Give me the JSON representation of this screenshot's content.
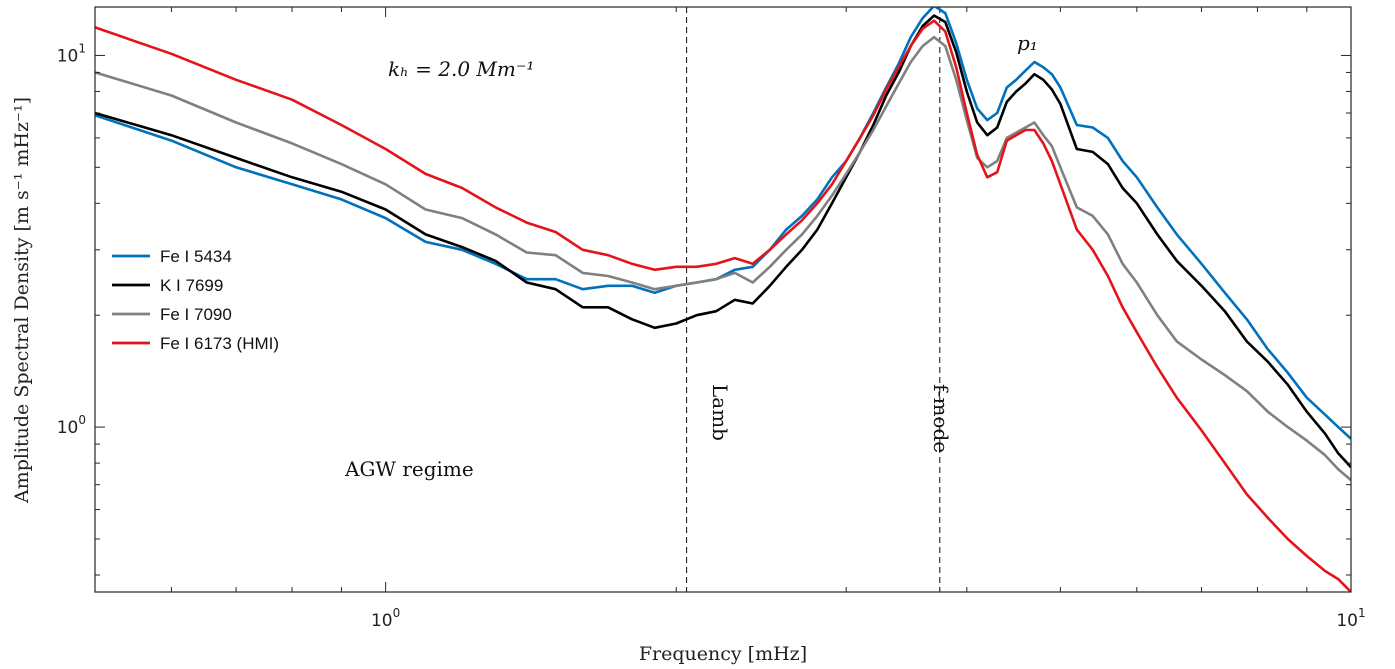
{
  "chart_data": {
    "type": "line",
    "xscale": "log",
    "yscale": "log",
    "xlim": [
      0.5,
      10
    ],
    "ylim": [
      0.36,
      13.5
    ],
    "xlabel": "Frequency [mHz]",
    "ylabel": "Amplitude Spectral Density [m s⁻¹ mHz⁻¹]",
    "xticks": [
      {
        "value": 1,
        "base": "10",
        "exp": "0"
      },
      {
        "value": 10,
        "base": "10",
        "exp": "1"
      }
    ],
    "yticks": [
      {
        "value": 1,
        "base": "10",
        "exp": "0"
      },
      {
        "value": 10,
        "base": "10",
        "exp": "1"
      }
    ],
    "grid": false,
    "legend_position": "left",
    "annotations": {
      "kh": "kₕ = 2.0 Mm⁻¹",
      "agw": "AGW regime",
      "lamb": "Lamb",
      "fmode": "f-mode",
      "p1": "p₁"
    },
    "vlines": [
      {
        "name": "lamb",
        "x": 2.05
      },
      {
        "name": "fmode",
        "x": 3.75
      }
    ],
    "series": [
      {
        "name": "Fe I 5434",
        "color": "#0072BD",
        "points": [
          [
            0.5,
            6.9
          ],
          [
            0.6,
            5.9
          ],
          [
            0.7,
            5.0
          ],
          [
            0.8,
            4.5
          ],
          [
            0.9,
            4.1
          ],
          [
            1.0,
            3.65
          ],
          [
            1.1,
            3.15
          ],
          [
            1.2,
            3.0
          ],
          [
            1.3,
            2.75
          ],
          [
            1.4,
            2.5
          ],
          [
            1.5,
            2.5
          ],
          [
            1.6,
            2.35
          ],
          [
            1.7,
            2.4
          ],
          [
            1.8,
            2.4
          ],
          [
            1.9,
            2.3
          ],
          [
            2.0,
            2.4
          ],
          [
            2.1,
            2.45
          ],
          [
            2.2,
            2.5
          ],
          [
            2.3,
            2.65
          ],
          [
            2.4,
            2.7
          ],
          [
            2.5,
            3.0
          ],
          [
            2.6,
            3.4
          ],
          [
            2.7,
            3.7
          ],
          [
            2.8,
            4.1
          ],
          [
            2.9,
            4.7
          ],
          [
            3.0,
            5.2
          ],
          [
            3.1,
            6.0
          ],
          [
            3.2,
            7.0
          ],
          [
            3.3,
            8.2
          ],
          [
            3.4,
            9.5
          ],
          [
            3.5,
            11.2
          ],
          [
            3.6,
            12.6
          ],
          [
            3.7,
            13.6
          ],
          [
            3.8,
            13.0
          ],
          [
            3.9,
            10.8
          ],
          [
            4.0,
            8.6
          ],
          [
            4.1,
            7.2
          ],
          [
            4.2,
            6.7
          ],
          [
            4.3,
            7.0
          ],
          [
            4.4,
            8.2
          ],
          [
            4.5,
            8.6
          ],
          [
            4.6,
            9.1
          ],
          [
            4.7,
            9.6
          ],
          [
            4.8,
            9.3
          ],
          [
            4.9,
            8.9
          ],
          [
            5.0,
            8.2
          ],
          [
            5.2,
            6.5
          ],
          [
            5.4,
            6.4
          ],
          [
            5.6,
            6.0
          ],
          [
            5.8,
            5.2
          ],
          [
            6.0,
            4.7
          ],
          [
            6.3,
            3.9
          ],
          [
            6.6,
            3.3
          ],
          [
            7.0,
            2.75
          ],
          [
            7.4,
            2.3
          ],
          [
            7.8,
            1.95
          ],
          [
            8.2,
            1.62
          ],
          [
            8.6,
            1.4
          ],
          [
            9.0,
            1.2
          ],
          [
            9.4,
            1.08
          ],
          [
            9.7,
            1.0
          ],
          [
            10.0,
            0.93
          ]
        ]
      },
      {
        "name": "K I 7699",
        "color": "#000000",
        "points": [
          [
            0.5,
            7.0
          ],
          [
            0.6,
            6.1
          ],
          [
            0.7,
            5.3
          ],
          [
            0.8,
            4.7
          ],
          [
            0.9,
            4.3
          ],
          [
            1.0,
            3.85
          ],
          [
            1.1,
            3.3
          ],
          [
            1.2,
            3.05
          ],
          [
            1.3,
            2.8
          ],
          [
            1.4,
            2.45
          ],
          [
            1.5,
            2.35
          ],
          [
            1.6,
            2.1
          ],
          [
            1.7,
            2.1
          ],
          [
            1.8,
            1.95
          ],
          [
            1.9,
            1.85
          ],
          [
            2.0,
            1.9
          ],
          [
            2.1,
            2.0
          ],
          [
            2.2,
            2.05
          ],
          [
            2.3,
            2.2
          ],
          [
            2.4,
            2.15
          ],
          [
            2.5,
            2.4
          ],
          [
            2.6,
            2.7
          ],
          [
            2.7,
            3.0
          ],
          [
            2.8,
            3.4
          ],
          [
            2.9,
            4.0
          ],
          [
            3.0,
            4.7
          ],
          [
            3.1,
            5.5
          ],
          [
            3.2,
            6.5
          ],
          [
            3.3,
            7.8
          ],
          [
            3.4,
            9.0
          ],
          [
            3.5,
            10.6
          ],
          [
            3.6,
            12.0
          ],
          [
            3.7,
            12.8
          ],
          [
            3.8,
            12.3
          ],
          [
            3.9,
            10.2
          ],
          [
            4.0,
            8.0
          ],
          [
            4.1,
            6.6
          ],
          [
            4.2,
            6.1
          ],
          [
            4.3,
            6.4
          ],
          [
            4.4,
            7.5
          ],
          [
            4.5,
            8.0
          ],
          [
            4.6,
            8.4
          ],
          [
            4.7,
            8.9
          ],
          [
            4.8,
            8.6
          ],
          [
            4.9,
            8.1
          ],
          [
            5.0,
            7.4
          ],
          [
            5.2,
            5.6
          ],
          [
            5.4,
            5.5
          ],
          [
            5.6,
            5.1
          ],
          [
            5.8,
            4.4
          ],
          [
            6.0,
            4.0
          ],
          [
            6.3,
            3.3
          ],
          [
            6.6,
            2.8
          ],
          [
            7.0,
            2.4
          ],
          [
            7.4,
            2.05
          ],
          [
            7.8,
            1.7
          ],
          [
            8.2,
            1.5
          ],
          [
            8.6,
            1.3
          ],
          [
            9.0,
            1.1
          ],
          [
            9.4,
            0.96
          ],
          [
            9.7,
            0.85
          ],
          [
            10.0,
            0.78
          ]
        ]
      },
      {
        "name": "Fe I 7090",
        "color": "#808080",
        "points": [
          [
            0.5,
            9.0
          ],
          [
            0.6,
            7.8
          ],
          [
            0.7,
            6.6
          ],
          [
            0.8,
            5.8
          ],
          [
            0.9,
            5.1
          ],
          [
            1.0,
            4.5
          ],
          [
            1.1,
            3.85
          ],
          [
            1.2,
            3.65
          ],
          [
            1.3,
            3.3
          ],
          [
            1.4,
            2.95
          ],
          [
            1.5,
            2.9
          ],
          [
            1.6,
            2.6
          ],
          [
            1.7,
            2.55
          ],
          [
            1.8,
            2.45
          ],
          [
            1.9,
            2.35
          ],
          [
            2.0,
            2.4
          ],
          [
            2.1,
            2.45
          ],
          [
            2.2,
            2.5
          ],
          [
            2.3,
            2.6
          ],
          [
            2.4,
            2.45
          ],
          [
            2.5,
            2.7
          ],
          [
            2.6,
            3.0
          ],
          [
            2.7,
            3.3
          ],
          [
            2.8,
            3.7
          ],
          [
            2.9,
            4.2
          ],
          [
            3.0,
            4.8
          ],
          [
            3.1,
            5.5
          ],
          [
            3.2,
            6.3
          ],
          [
            3.3,
            7.3
          ],
          [
            3.4,
            8.4
          ],
          [
            3.5,
            9.6
          ],
          [
            3.6,
            10.6
          ],
          [
            3.7,
            11.2
          ],
          [
            3.8,
            10.6
          ],
          [
            3.9,
            8.6
          ],
          [
            4.0,
            6.7
          ],
          [
            4.1,
            5.3
          ],
          [
            4.2,
            5.0
          ],
          [
            4.3,
            5.2
          ],
          [
            4.4,
            6.0
          ],
          [
            4.5,
            6.2
          ],
          [
            4.6,
            6.4
          ],
          [
            4.7,
            6.6
          ],
          [
            4.8,
            6.1
          ],
          [
            4.9,
            5.7
          ],
          [
            5.0,
            5.0
          ],
          [
            5.2,
            3.9
          ],
          [
            5.4,
            3.7
          ],
          [
            5.6,
            3.3
          ],
          [
            5.8,
            2.75
          ],
          [
            6.0,
            2.45
          ],
          [
            6.3,
            2.0
          ],
          [
            6.6,
            1.7
          ],
          [
            7.0,
            1.52
          ],
          [
            7.4,
            1.38
          ],
          [
            7.8,
            1.25
          ],
          [
            8.2,
            1.1
          ],
          [
            8.6,
            1.0
          ],
          [
            9.0,
            0.92
          ],
          [
            9.4,
            0.84
          ],
          [
            9.7,
            0.77
          ],
          [
            10.0,
            0.72
          ]
        ]
      },
      {
        "name": "Fe I 6173 (HMI)",
        "color": "#E3151B",
        "points": [
          [
            0.5,
            11.9
          ],
          [
            0.6,
            10.1
          ],
          [
            0.7,
            8.6
          ],
          [
            0.8,
            7.6
          ],
          [
            0.9,
            6.5
          ],
          [
            1.0,
            5.6
          ],
          [
            1.1,
            4.8
          ],
          [
            1.2,
            4.4
          ],
          [
            1.3,
            3.9
          ],
          [
            1.4,
            3.55
          ],
          [
            1.5,
            3.35
          ],
          [
            1.6,
            3.0
          ],
          [
            1.7,
            2.9
          ],
          [
            1.8,
            2.75
          ],
          [
            1.9,
            2.65
          ],
          [
            2.0,
            2.7
          ],
          [
            2.1,
            2.7
          ],
          [
            2.2,
            2.75
          ],
          [
            2.3,
            2.85
          ],
          [
            2.4,
            2.75
          ],
          [
            2.5,
            3.0
          ],
          [
            2.6,
            3.3
          ],
          [
            2.7,
            3.6
          ],
          [
            2.8,
            4.0
          ],
          [
            2.9,
            4.5
          ],
          [
            3.0,
            5.2
          ],
          [
            3.1,
            6.0
          ],
          [
            3.2,
            6.9
          ],
          [
            3.3,
            8.1
          ],
          [
            3.4,
            9.3
          ],
          [
            3.5,
            10.6
          ],
          [
            3.6,
            11.8
          ],
          [
            3.7,
            12.4
          ],
          [
            3.8,
            11.6
          ],
          [
            3.9,
            9.3
          ],
          [
            4.0,
            7.0
          ],
          [
            4.1,
            5.4
          ],
          [
            4.2,
            4.7
          ],
          [
            4.3,
            4.85
          ],
          [
            4.4,
            5.9
          ],
          [
            4.5,
            6.1
          ],
          [
            4.6,
            6.3
          ],
          [
            4.7,
            6.3
          ],
          [
            4.8,
            5.8
          ],
          [
            4.9,
            5.2
          ],
          [
            5.0,
            4.5
          ],
          [
            5.2,
            3.4
          ],
          [
            5.4,
            3.0
          ],
          [
            5.6,
            2.55
          ],
          [
            5.8,
            2.1
          ],
          [
            6.0,
            1.8
          ],
          [
            6.3,
            1.45
          ],
          [
            6.6,
            1.2
          ],
          [
            7.0,
            0.98
          ],
          [
            7.4,
            0.8
          ],
          [
            7.8,
            0.66
          ],
          [
            8.2,
            0.57
          ],
          [
            8.6,
            0.5
          ],
          [
            9.0,
            0.45
          ],
          [
            9.4,
            0.41
          ],
          [
            9.7,
            0.39
          ],
          [
            10.0,
            0.36
          ]
        ]
      }
    ]
  }
}
